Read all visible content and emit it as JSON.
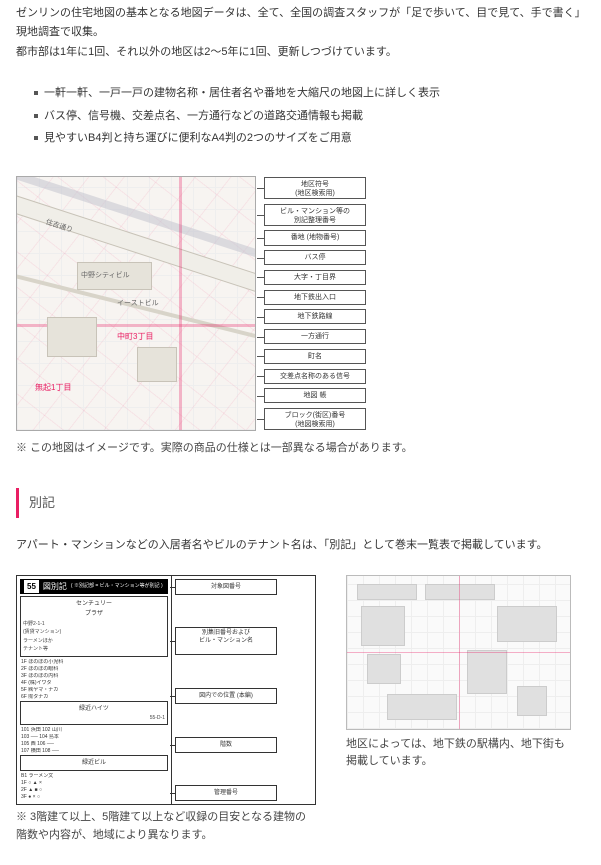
{
  "intro": {
    "p1": "ゼンリンの住宅地図の基本となる地図データは、全て、全国の調査スタッフが「足で歩いて、目で見て、手で書く」現地調査で収集。",
    "p2": "都市部は1年に1回、それ以外の地区は2〜5年に1回、更新しつづけています。"
  },
  "features": [
    "一軒一軒、一戸一戸の建物名称・居住者名や番地を大縮尺の地図上に詳しく表示",
    "バス停、信号機、交差点名、一方通行などの道路交通情報も掲載",
    "見やすいB4判と持ち運びに便利なA4判の2つのサイズをご用意"
  ],
  "map": {
    "inmap": {
      "street": "住吉通り",
      "bldg1": "中野シティビル",
      "bldg2": "イーストビル",
      "chome_a": "中町3丁目",
      "chome_b": "無起1丁目"
    },
    "legend": [
      "地区符号\n(地区検索用)",
      "ビル・マンション等の\n別記整理番号",
      "番地 (地物番号)",
      "バス停",
      "大字・丁目界",
      "地下鉄出入口",
      "地下鉄路線",
      "一方通行",
      "町名",
      "交差点名称のある信号",
      "地図 帳",
      "ブロック(街区)番号\n(地図検索用)"
    ],
    "note": "※ この地図はイメージです。実際の商品の仕様とは一部異なる場合があります。"
  },
  "bekki": {
    "heading": "別記",
    "desc": "アパート・マンションなどの入居者名やビルのテナント名は、「別記」として巻末一覧表で掲載しています。",
    "fig": {
      "title_num": "55",
      "title": "図別記",
      "title_note": "( ※別記部 = ビル・マンション等が別記 )",
      "box1_head": "センチュリー\nプラザ",
      "box1_sub": "中野2-1-1\n(賃貸マンション)\nラーメンほか\nテナント等",
      "rows_a": [
        "1F  ほのぼの小児科",
        "2F  ほのぼの眼科",
        "3F  ほのぼの内科",
        "4F  (株)イワタ",
        "5F  ㈱ヤマ・ナカ",
        "6F  ㈲タナカ"
      ],
      "box2_head": "緑近ハイツ",
      "box2_sub": "55-D-1",
      "rows_b": [
        "101  浜田 102 山川",
        "103  ── 104 島本",
        "105  西  106 ──",
        "107  横田 108 ──"
      ],
      "box3_head": "緑近ビル",
      "rows_c": [
        "B1  ラーメン文",
        "1F  ○ ▲ ×",
        "2F  ▲ ■ ○",
        "3F  ● × ○"
      ],
      "right_cells": [
        "対象図番号",
        "別集旧番号および\nビル・マンション名",
        "図内での位置 (本編)",
        "階数",
        "管理番号"
      ]
    },
    "note": "※ 3階建て以上、5階建て以上など収録の目安となる建物の階数や内容が、地域により異なります。"
  },
  "station": {
    "note": "地区によっては、地下鉄の駅構内、地下街も掲載しています。"
  },
  "colors": {
    "accent": "#e91e63"
  }
}
